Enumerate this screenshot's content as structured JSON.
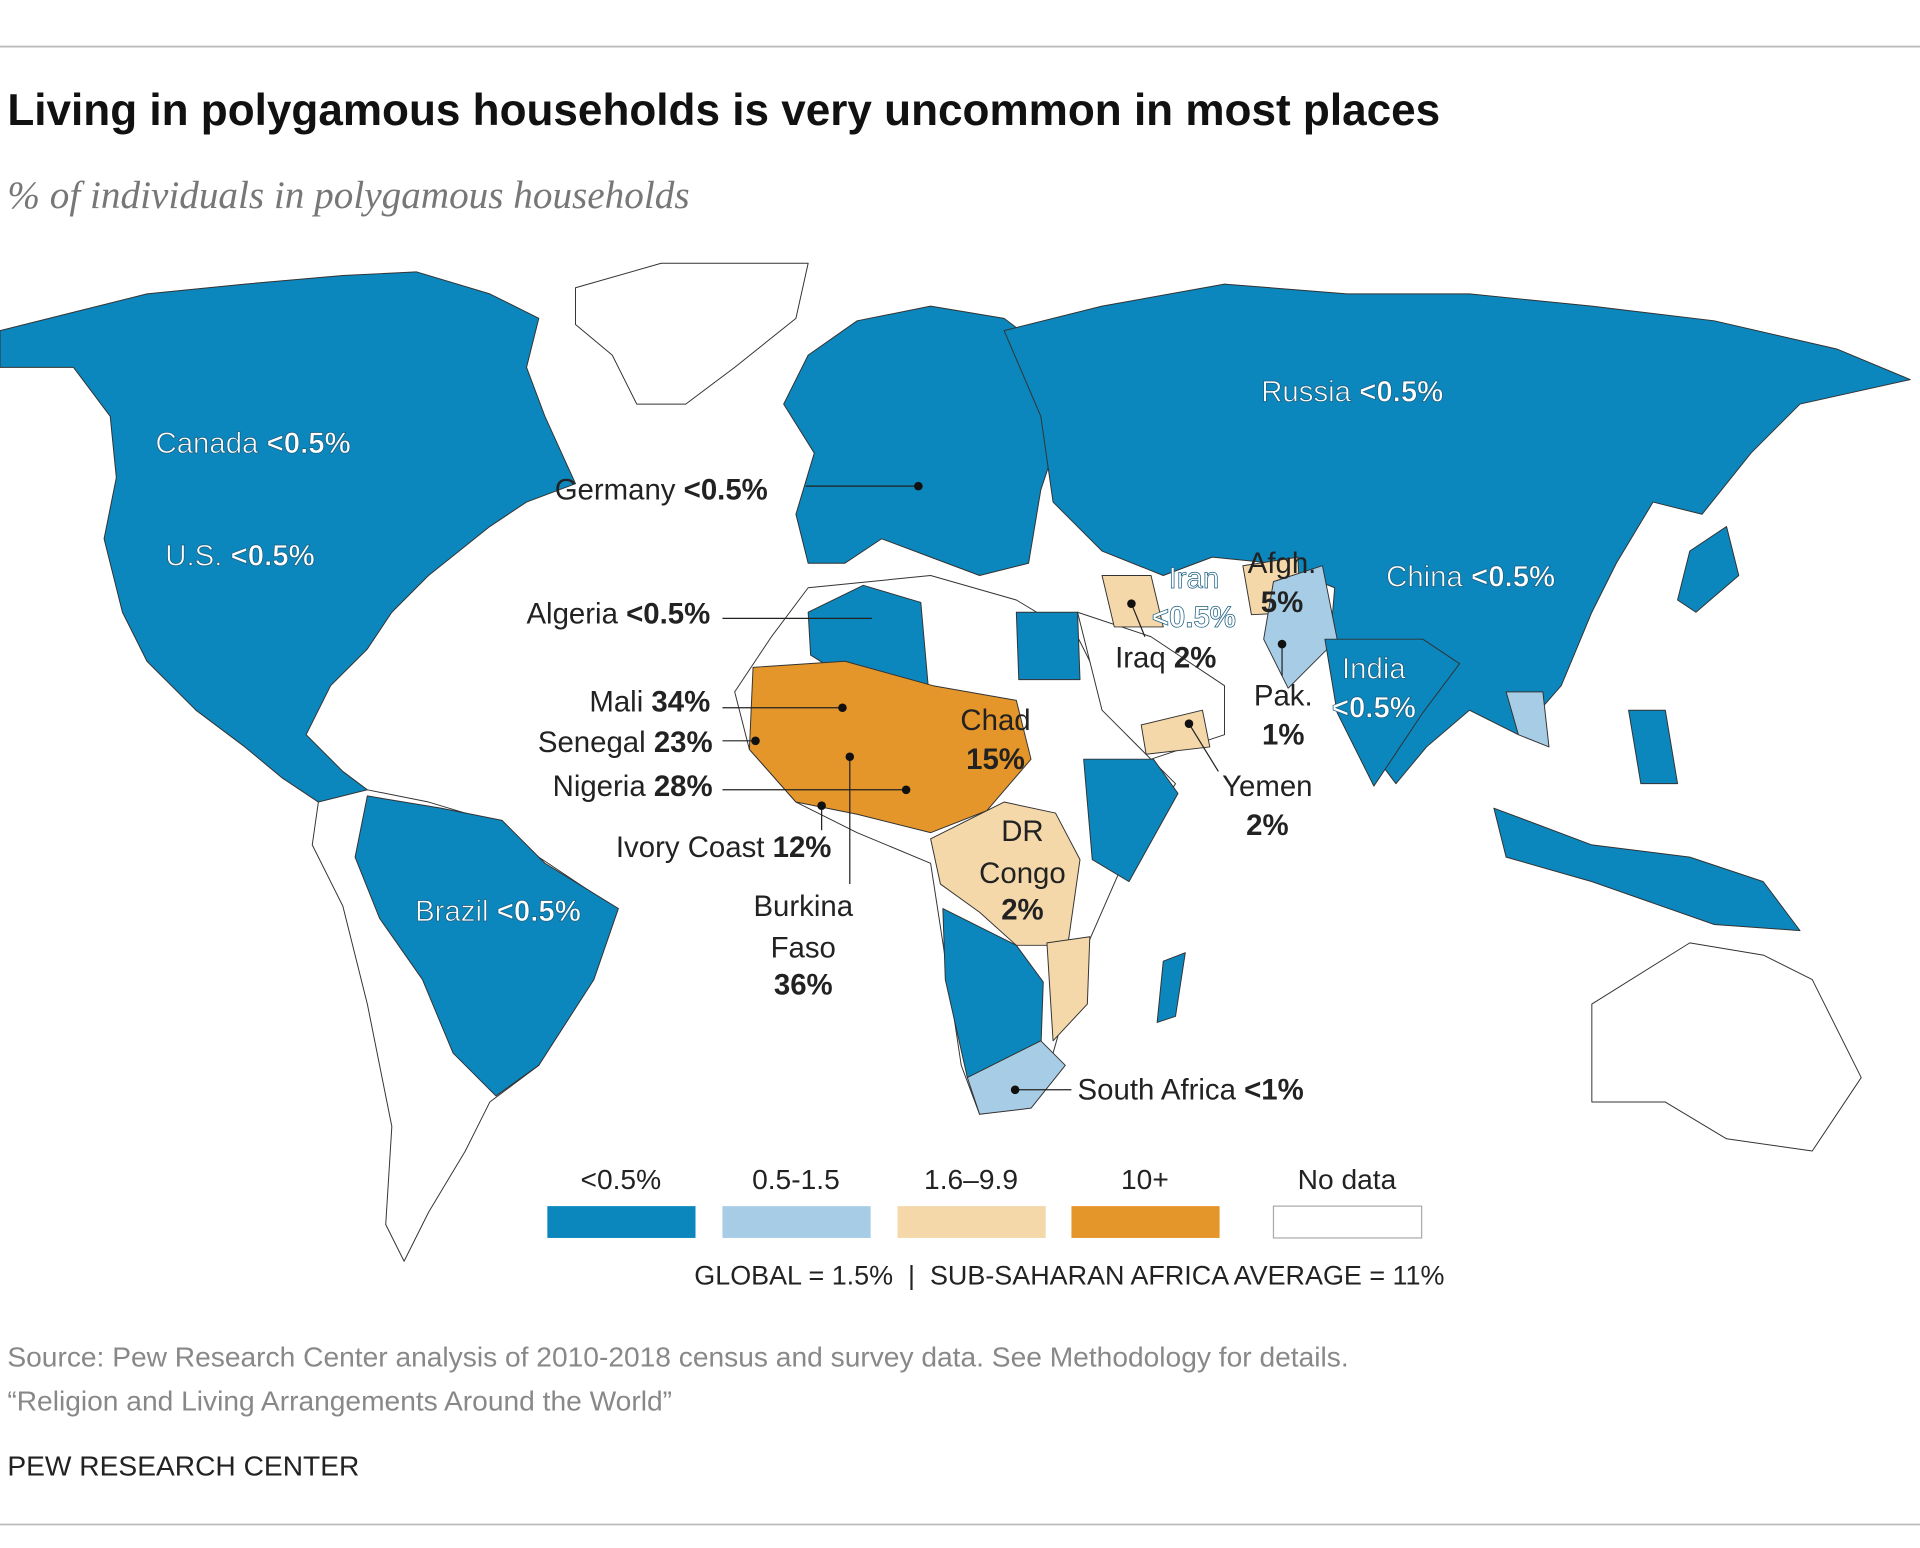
{
  "header": {
    "title": "Living in polygamous households is very uncommon in most places",
    "subtitle": "% of individuals in polygamous households"
  },
  "labels": [
    {
      "name": "Canada",
      "value": "<0.5%"
    },
    {
      "name": "U.S.",
      "value": "<0.5%"
    },
    {
      "name": "Germany",
      "value": "<0.5%"
    },
    {
      "name": "Russia",
      "value": "<0.5%"
    },
    {
      "name": "China",
      "value": "<0.5%"
    },
    {
      "name": "Algeria",
      "value": "<0.5%"
    },
    {
      "name": "Mali",
      "value": "34%"
    },
    {
      "name": "Senegal",
      "value": "23%"
    },
    {
      "name": "Nigeria",
      "value": "28%"
    },
    {
      "name": "Ivory Coast",
      "value": "12%"
    },
    {
      "name": [
        "Burkina",
        "Faso"
      ],
      "value": "36%"
    },
    {
      "name": [
        "Chad"
      ],
      "value": "15%"
    },
    {
      "name": [
        "DR",
        "Congo"
      ],
      "value": "2%"
    },
    {
      "name": [
        "Iran"
      ],
      "value": "<0.5%"
    },
    {
      "name": [
        "Afgh."
      ],
      "value": "5%"
    },
    {
      "name": "Iraq",
      "value": "2%"
    },
    {
      "name": [
        "Pak."
      ],
      "value": "1%"
    },
    {
      "name": [
        "India"
      ],
      "value": "<0.5%"
    },
    {
      "name": [
        "Yemen"
      ],
      "value": "2%"
    },
    {
      "name": "Brazil",
      "value": "<0.5%"
    },
    {
      "name": "South Africa",
      "value": "<1%"
    }
  ],
  "legend": {
    "items": [
      {
        "label": "<0.5%",
        "color": "#0b87bd"
      },
      {
        "label": "0.5-1.5",
        "color": "#a7cde6"
      },
      {
        "label": "1.6–9.9",
        "color": "#f5d8a9"
      },
      {
        "label": "10+",
        "color": "#e5962b"
      },
      {
        "label": "No data",
        "color": "#ffffff"
      }
    ]
  },
  "note": "GLOBAL = 1.5%  |  SUB-SAHARAN AFRICA AVERAGE = 11%",
  "footer": {
    "source": "Source: Pew Research Center analysis of 2010-2018 census and survey data. See Methodology for details.",
    "report": "“Religion and Living Arrangements Around the World”",
    "credit": "PEW RESEARCH CENTER"
  }
}
